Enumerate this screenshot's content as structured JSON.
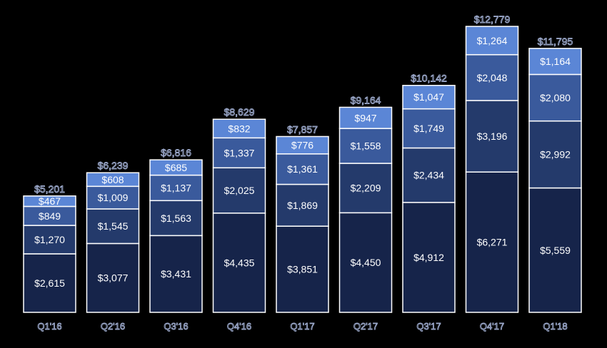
{
  "chart_data": {
    "type": "bar",
    "stacked": true,
    "categories": [
      "Q1'16",
      "Q2'16",
      "Q3'16",
      "Q4'16",
      "Q1'17",
      "Q2'17",
      "Q3'17",
      "Q4'17",
      "Q1'18"
    ],
    "series": [
      {
        "values": [
          2615,
          3077,
          3431,
          4435,
          3851,
          4450,
          4912,
          6271,
          5559
        ],
        "labels": [
          "$2,615",
          "$3,077",
          "$3,431",
          "$4,435",
          "$3,851",
          "$4,450",
          "$4,912",
          "$6,271",
          "$5,559"
        ],
        "color": "#16244a"
      },
      {
        "values": [
          1270,
          1545,
          1563,
          2025,
          1869,
          2209,
          2434,
          3196,
          2992
        ],
        "labels": [
          "$1,270",
          "$1,545",
          "$1,563",
          "$2,025",
          "$1,869",
          "$2,209",
          "$2,434",
          "$3,196",
          "$2,992"
        ],
        "color": "#243a6b"
      },
      {
        "values": [
          849,
          1009,
          1137,
          1337,
          1361,
          1558,
          1749,
          2048,
          2080
        ],
        "labels": [
          "$849",
          "$1,009",
          "$1,137",
          "$1,337",
          "$1,361",
          "$1,558",
          "$1,749",
          "$2,048",
          "$2,080"
        ],
        "color": "#3a5a9c"
      },
      {
        "values": [
          467,
          608,
          685,
          832,
          776,
          947,
          1047,
          1264,
          1164
        ],
        "labels": [
          "$467",
          "$608",
          "$685",
          "$832",
          "$776",
          "$947",
          "$1,047",
          "$1,264",
          "$1,164"
        ],
        "color": "#5b86d6"
      }
    ],
    "totals": [
      5201,
      6239,
      6816,
      8629,
      7857,
      9164,
      10142,
      12779,
      11795
    ],
    "total_labels": [
      "$5,201",
      "$6,239",
      "$6,816",
      "$8,629",
      "$7,857",
      "$9,164",
      "$10,142",
      "$12,779",
      "$11,795"
    ],
    "ylim": [
      0,
      12779
    ],
    "grid": false,
    "legend": "none",
    "colors": {
      "background": "#000000",
      "bar_border": "#ffffff",
      "segment_text": "#ffffff",
      "outline_text": "#9aa7c9"
    }
  }
}
